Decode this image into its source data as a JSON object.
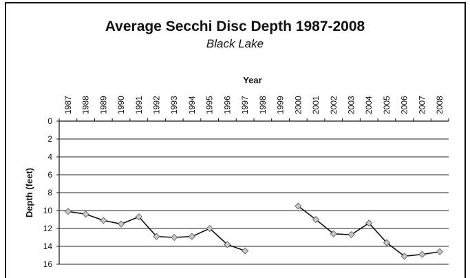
{
  "chart_data": {
    "type": "line",
    "title": "Average Secchi Disc Depth 1987-2008",
    "subtitle": "Black Lake",
    "xlabel": "Year",
    "ylabel": "Depth (feet)",
    "categories": [
      "1987",
      "1988",
      "1989",
      "1990",
      "1991",
      "1992",
      "1993",
      "1994",
      "1995",
      "1996",
      "1997",
      "1998",
      "1999",
      "2000",
      "2001",
      "2002",
      "2003",
      "2004",
      "2005",
      "2006",
      "2007",
      "2008"
    ],
    "series": [
      {
        "values": [
          10.1,
          10.4,
          11.1,
          11.5,
          10.7,
          12.9,
          13.0,
          12.9,
          12.0,
          13.8,
          14.5,
          null,
          null,
          9.5,
          11.0,
          12.6,
          12.7,
          11.4,
          13.6,
          15.1,
          14.9,
          14.6
        ],
        "color": "#111111",
        "marker": "diamond",
        "marker_fill": "#c8c8c8"
      }
    ],
    "ylim": [
      0,
      16
    ],
    "y_ticks": [
      0,
      2,
      4,
      6,
      8,
      10,
      12,
      14,
      16
    ],
    "y_inverted": true,
    "x_axis_position": "top",
    "grid": true,
    "legend": "none"
  }
}
